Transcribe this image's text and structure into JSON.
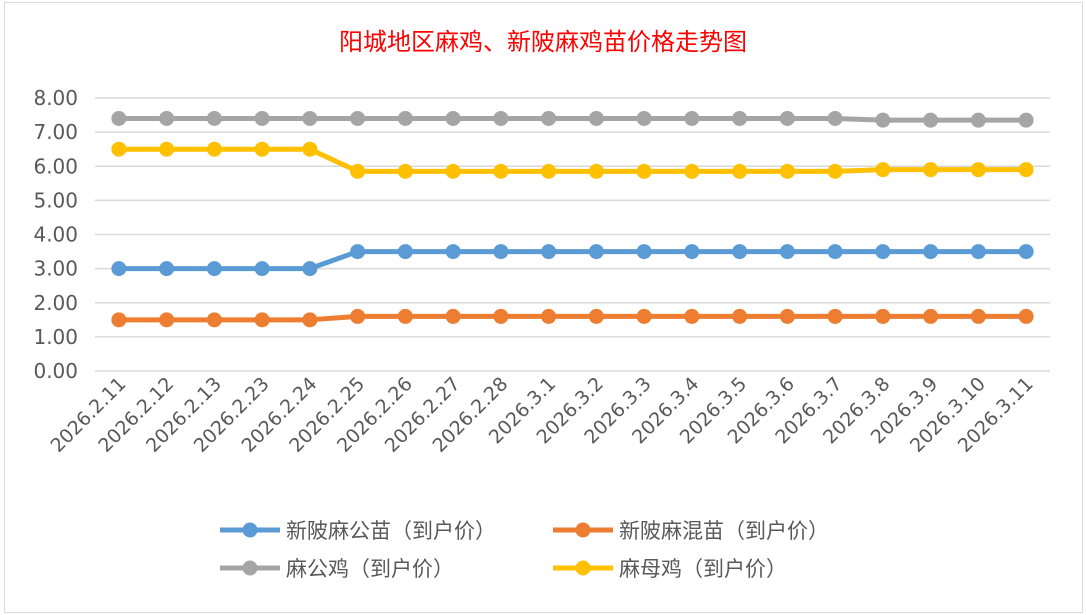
{
  "chart_data": {
    "type": "line",
    "title": "阳城地区麻鸡、新陂麻鸡苗价格走势图",
    "title_color": "#ff0000",
    "xlabel": "",
    "ylabel": "",
    "ylim": [
      0,
      8
    ],
    "yticks": [
      "0.00",
      "1.00",
      "2.00",
      "3.00",
      "4.00",
      "5.00",
      "6.00",
      "7.00",
      "8.00"
    ],
    "grid": true,
    "legend_position": "bottom",
    "categories": [
      "2026.2.11",
      "2026.2.12",
      "2026.2.13",
      "2026.2.23",
      "2026.2.24",
      "2026.2.25",
      "2026.2.26",
      "2026.2.27",
      "2026.2.28",
      "2026.3.1",
      "2026.3.2",
      "2026.3.3",
      "2026.3.4",
      "2026.3.5",
      "2026.3.6",
      "2026.3.7",
      "2026.3.8",
      "2026.3.9",
      "2026.3.10",
      "2026.3.11"
    ],
    "series": [
      {
        "name": "新陂麻公苗（到户价）",
        "color": "#5b9bd5",
        "values": [
          3.0,
          3.0,
          3.0,
          3.0,
          3.0,
          3.5,
          3.5,
          3.5,
          3.5,
          3.5,
          3.5,
          3.5,
          3.5,
          3.5,
          3.5,
          3.5,
          3.5,
          3.5,
          3.5,
          3.5
        ]
      },
      {
        "name": "新陂麻混苗（到户价）",
        "color": "#ed7d31",
        "values": [
          1.5,
          1.5,
          1.5,
          1.5,
          1.5,
          1.6,
          1.6,
          1.6,
          1.6,
          1.6,
          1.6,
          1.6,
          1.6,
          1.6,
          1.6,
          1.6,
          1.6,
          1.6,
          1.6,
          1.6
        ]
      },
      {
        "name": "麻公鸡（到户价）",
        "color": "#a5a5a5",
        "values": [
          7.4,
          7.4,
          7.4,
          7.4,
          7.4,
          7.4,
          7.4,
          7.4,
          7.4,
          7.4,
          7.4,
          7.4,
          7.4,
          7.4,
          7.4,
          7.4,
          7.35,
          7.35,
          7.35,
          7.35
        ]
      },
      {
        "name": "麻母鸡（到户价）",
        "color": "#ffc000",
        "values": [
          6.5,
          6.5,
          6.5,
          6.5,
          6.5,
          5.85,
          5.85,
          5.85,
          5.85,
          5.85,
          5.85,
          5.85,
          5.85,
          5.85,
          5.85,
          5.85,
          5.9,
          5.9,
          5.9,
          5.9
        ]
      }
    ]
  }
}
